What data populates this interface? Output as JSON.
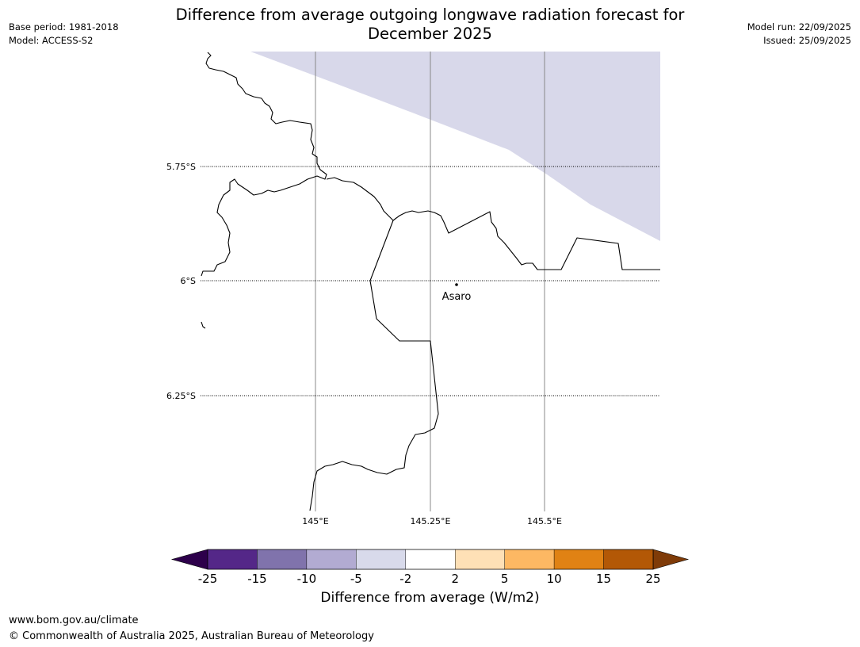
{
  "header": {
    "title_line1": "Difference from average outgoing longwave radiation forecast for",
    "title_line2": "December 2025",
    "base_period": "Base period: 1981-2018",
    "model": "Model: ACCESS-S2",
    "model_run": "Model run: 22/09/2025",
    "issued": "Issued: 25/09/2025"
  },
  "map": {
    "lat_labels": [
      "5.75°S",
      "6°S",
      "6.25°S"
    ],
    "lon_labels": [
      "145°E",
      "145.25°E",
      "145.5°E"
    ],
    "place": {
      "name": "Asaro",
      "icon": "town-dot-icon"
    },
    "colors": {
      "coastline": "#000000",
      "meridian": "#888888",
      "anomaly_fill": "#d8d8ea"
    }
  },
  "colorbar": {
    "title": "Difference from average (W/m2)",
    "ticks": [
      "-25",
      "-15",
      "-10",
      "-5",
      "-2",
      "2",
      "5",
      "10",
      "15",
      "25"
    ],
    "low_extend_color": "#2d004b",
    "high_extend_color": "#7f3b08",
    "colors": [
      "#542788",
      "#8073ac",
      "#b2abd2",
      "#d8daeb",
      "#ffffff",
      "#fee0b6",
      "#fdb863",
      "#e08214",
      "#b35806"
    ]
  },
  "footer": {
    "url": "www.bom.gov.au/climate",
    "copyright": "© Commonwealth of Australia 2025, Australian Bureau of Meteorology"
  }
}
